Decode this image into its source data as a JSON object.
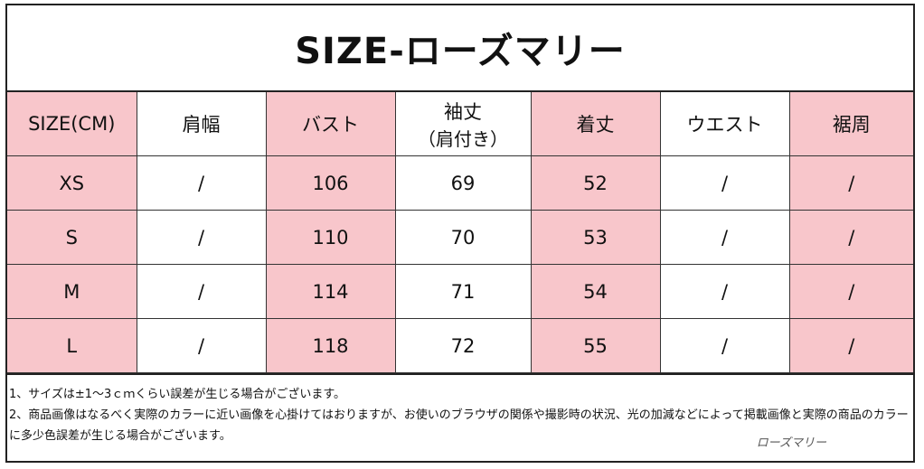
{
  "title": "SIZE-ローズマリー",
  "headers": [
    "SIZE(CM)",
    "肩幅",
    "バスト",
    "袖丈",
    "着丈",
    "ウエスト",
    "裾周"
  ],
  "header_sub": {
    "sleeve": "（肩付き）"
  },
  "rows": [
    [
      "XS",
      "/",
      "106",
      "69",
      "52",
      "/",
      "/"
    ],
    [
      "S",
      "/",
      "110",
      "70",
      "53",
      "/",
      "/"
    ],
    [
      "M",
      "/",
      "114",
      "71",
      "54",
      "/",
      "/"
    ],
    [
      "L",
      "/",
      "118",
      "72",
      "55",
      "/",
      "/"
    ]
  ],
  "notes": {
    "line1": "1、サイズは±1～3ｃｍくらい誤差が生じる場合がございます。",
    "line2": "2、商品画像はなるべく実際のカラーに近い画像を心掛けてはおりますが、お使いのブラウザの関係や撮影時の状況、光の加減などによって掲載画像と実際の商品のカラーに多少色誤差が生じる場合がございます。"
  },
  "brand": "ローズマリー",
  "colors": {
    "header_pink": "#f8c6cb",
    "border": "#222222"
  }
}
